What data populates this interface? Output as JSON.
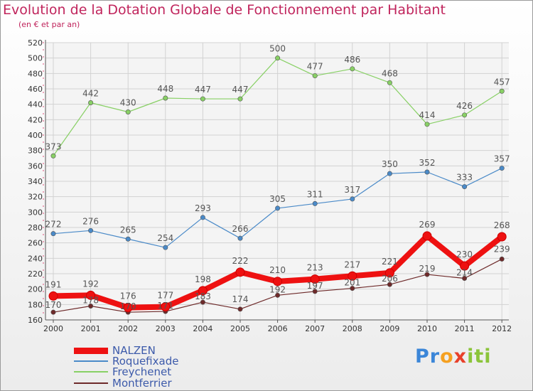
{
  "title": "Evolution de la Dotation Globale de Fonctionnement par Habitant",
  "subtitle": "(en € et par an)",
  "logo": {
    "p1": "Pr",
    "o": "o",
    "x": "x",
    "i": "iti"
  },
  "chart_data": {
    "type": "line",
    "title": "Evolution de la Dotation Globale de Fonctionnement par Habitant",
    "ylabel": "(en € et par an)",
    "xlabel": "",
    "ylim": [
      160,
      520
    ],
    "yticks": [
      160,
      180,
      200,
      220,
      240,
      260,
      280,
      300,
      320,
      340,
      360,
      380,
      400,
      420,
      440,
      460,
      480,
      500,
      520
    ],
    "categories": [
      "2000",
      "2001",
      "2002",
      "2003",
      "2004",
      "2005",
      "2006",
      "2007",
      "2008",
      "2009",
      "2010",
      "2011",
      "2012"
    ],
    "grid": true,
    "legend_position": "bottom-left",
    "series": [
      {
        "name": "NALZEN",
        "color": "#ee1111",
        "values": [
          191,
          192,
          176,
          177,
          198,
          222,
          210,
          213,
          217,
          221,
          269,
          230,
          268
        ],
        "labels": [
          "191",
          "192",
          "176",
          "177",
          "198",
          "222",
          "210",
          "213",
          "217",
          "221",
          "269",
          "230",
          "268"
        ]
      },
      {
        "name": "Roquefixade",
        "color": "#4a8ac8",
        "values": [
          272,
          276,
          265,
          254,
          293,
          266,
          305,
          311,
          317,
          350,
          352,
          333,
          357
        ],
        "labels": [
          "272",
          "276",
          "265",
          "254",
          "293",
          "266",
          "305",
          "311",
          "317",
          "350",
          "352",
          "333",
          "357"
        ]
      },
      {
        "name": "Freychenet",
        "color": "#88d065",
        "values": [
          373,
          442,
          430,
          448,
          447,
          447,
          500,
          477,
          486,
          468,
          414,
          426,
          457
        ],
        "labels": [
          "373",
          "442",
          "430",
          "448",
          "447",
          "447",
          "500",
          "477",
          "486",
          "468",
          "414",
          "426",
          "457"
        ]
      },
      {
        "name": "Montferrier",
        "color": "#6e2a2a",
        "values": [
          170,
          178,
          170,
          171,
          183,
          174,
          192,
          197,
          201,
          206,
          219,
          214,
          239
        ],
        "labels": [
          "170",
          "178",
          "170",
          "171",
          "183",
          "174",
          "192",
          "197",
          "201",
          "206",
          "219",
          "214",
          "239"
        ]
      }
    ]
  }
}
